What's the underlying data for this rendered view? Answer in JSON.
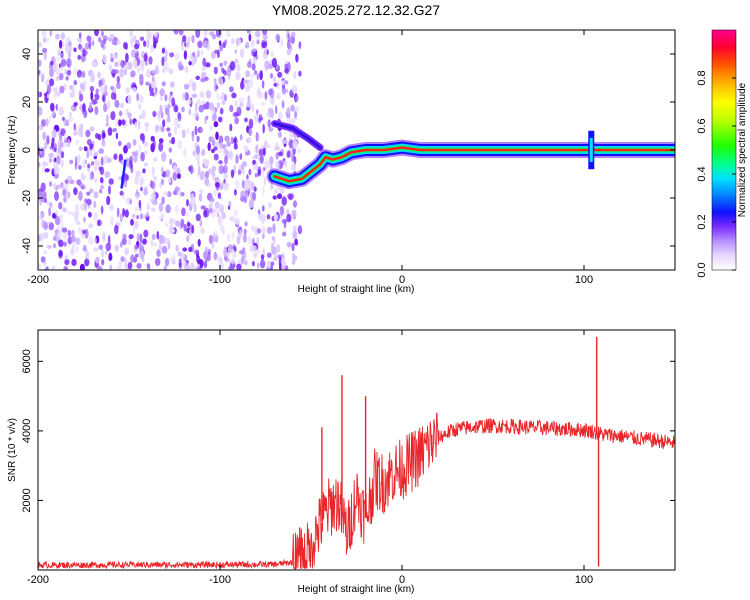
{
  "chart_data": [
    {
      "type": "heatmap",
      "title": "YM08.2025.272.12.32.G27",
      "xlabel": "Height of straight line (km)",
      "ylabel": "Frequency (Hz)",
      "xlim": [
        -200,
        150
      ],
      "ylim": [
        -50,
        50
      ],
      "x_ticks": [
        -200,
        -100,
        0,
        100
      ],
      "x_tick_labels": [
        "-200",
        "-100",
        "0",
        "100"
      ],
      "y_ticks": [
        -40,
        -20,
        0,
        20,
        40
      ],
      "y_tick_labels": [
        "-40",
        "-20",
        "0",
        "20",
        "40"
      ],
      "colorbar": {
        "label": "Normalized spectral amplitude",
        "range": [
          0,
          1
        ],
        "ticks": [
          0.0,
          0.2,
          0.4,
          0.6,
          0.8
        ],
        "tick_labels": [
          "0.0",
          "0.2",
          "0.4",
          "0.6",
          "0.8"
        ]
      },
      "noise_region_x": [
        -200,
        -62
      ],
      "signal_track": [
        {
          "x": -70,
          "y": -11
        },
        {
          "x": -62,
          "y": -13
        },
        {
          "x": -55,
          "y": -12
        },
        {
          "x": -50,
          "y": -9
        },
        {
          "x": -45,
          "y": -6
        },
        {
          "x": -42,
          "y": -3
        },
        {
          "x": -38,
          "y": -4
        },
        {
          "x": -33,
          "y": -3
        },
        {
          "x": -28,
          "y": -1
        },
        {
          "x": -20,
          "y": 0
        },
        {
          "x": -10,
          "y": 0
        },
        {
          "x": 0,
          "y": 1
        },
        {
          "x": 10,
          "y": 0
        },
        {
          "x": 150,
          "y": 0
        }
      ],
      "upper_branch": [
        {
          "x": -70,
          "y": 11
        },
        {
          "x": -60,
          "y": 9
        },
        {
          "x": -52,
          "y": 5
        },
        {
          "x": -45,
          "y": 1
        }
      ],
      "feature_x": 104,
      "noise_feature_x": -153
    },
    {
      "type": "line",
      "xlabel": "Height of straight line (km)",
      "ylabel": "SNR (10 * v/v)",
      "xlim": [
        -200,
        150
      ],
      "ylim": [
        0,
        6900
      ],
      "x_ticks": [
        -200,
        -100,
        0,
        100
      ],
      "x_tick_labels": [
        "-200",
        "-100",
        "0",
        "100"
      ],
      "y_ticks": [
        2000,
        4000,
        6000
      ],
      "y_tick_labels": [
        "2000",
        "4000",
        "6000"
      ],
      "color": "#e8262a",
      "series": [
        {
          "name": "SNR",
          "points": [
            [
              -200,
              140
            ],
            [
              -150,
              150
            ],
            [
              -100,
              150
            ],
            [
              -70,
              160
            ],
            [
              -60,
              220
            ],
            [
              -52,
              500
            ],
            [
              -45,
              1300
            ],
            [
              -40,
              1800
            ],
            [
              -35,
              2000
            ],
            [
              -30,
              1000
            ],
            [
              -25,
              2200
            ],
            [
              -20,
              1500
            ],
            [
              -15,
              2600
            ],
            [
              -10,
              2500
            ],
            [
              -5,
              2800
            ],
            [
              0,
              2900
            ],
            [
              5,
              3100
            ],
            [
              10,
              3300
            ],
            [
              15,
              3600
            ],
            [
              20,
              3800
            ],
            [
              25,
              3950
            ],
            [
              30,
              4050
            ],
            [
              40,
              4120
            ],
            [
              50,
              4150
            ],
            [
              60,
              4130
            ],
            [
              70,
              4100
            ],
            [
              80,
              4080
            ],
            [
              90,
              4050
            ],
            [
              100,
              4030
            ],
            [
              105,
              3980
            ],
            [
              110,
              3900
            ],
            [
              120,
              3850
            ],
            [
              130,
              3780
            ],
            [
              140,
              3720
            ],
            [
              150,
              3650
            ]
          ]
        }
      ],
      "spikes": [
        {
          "x": -33,
          "y": 5600
        },
        {
          "x": -20,
          "y": 5000
        },
        {
          "x": -44,
          "y": 4100
        },
        {
          "x": 107,
          "y": 6700
        },
        {
          "x": 108,
          "y": 100
        }
      ]
    }
  ]
}
